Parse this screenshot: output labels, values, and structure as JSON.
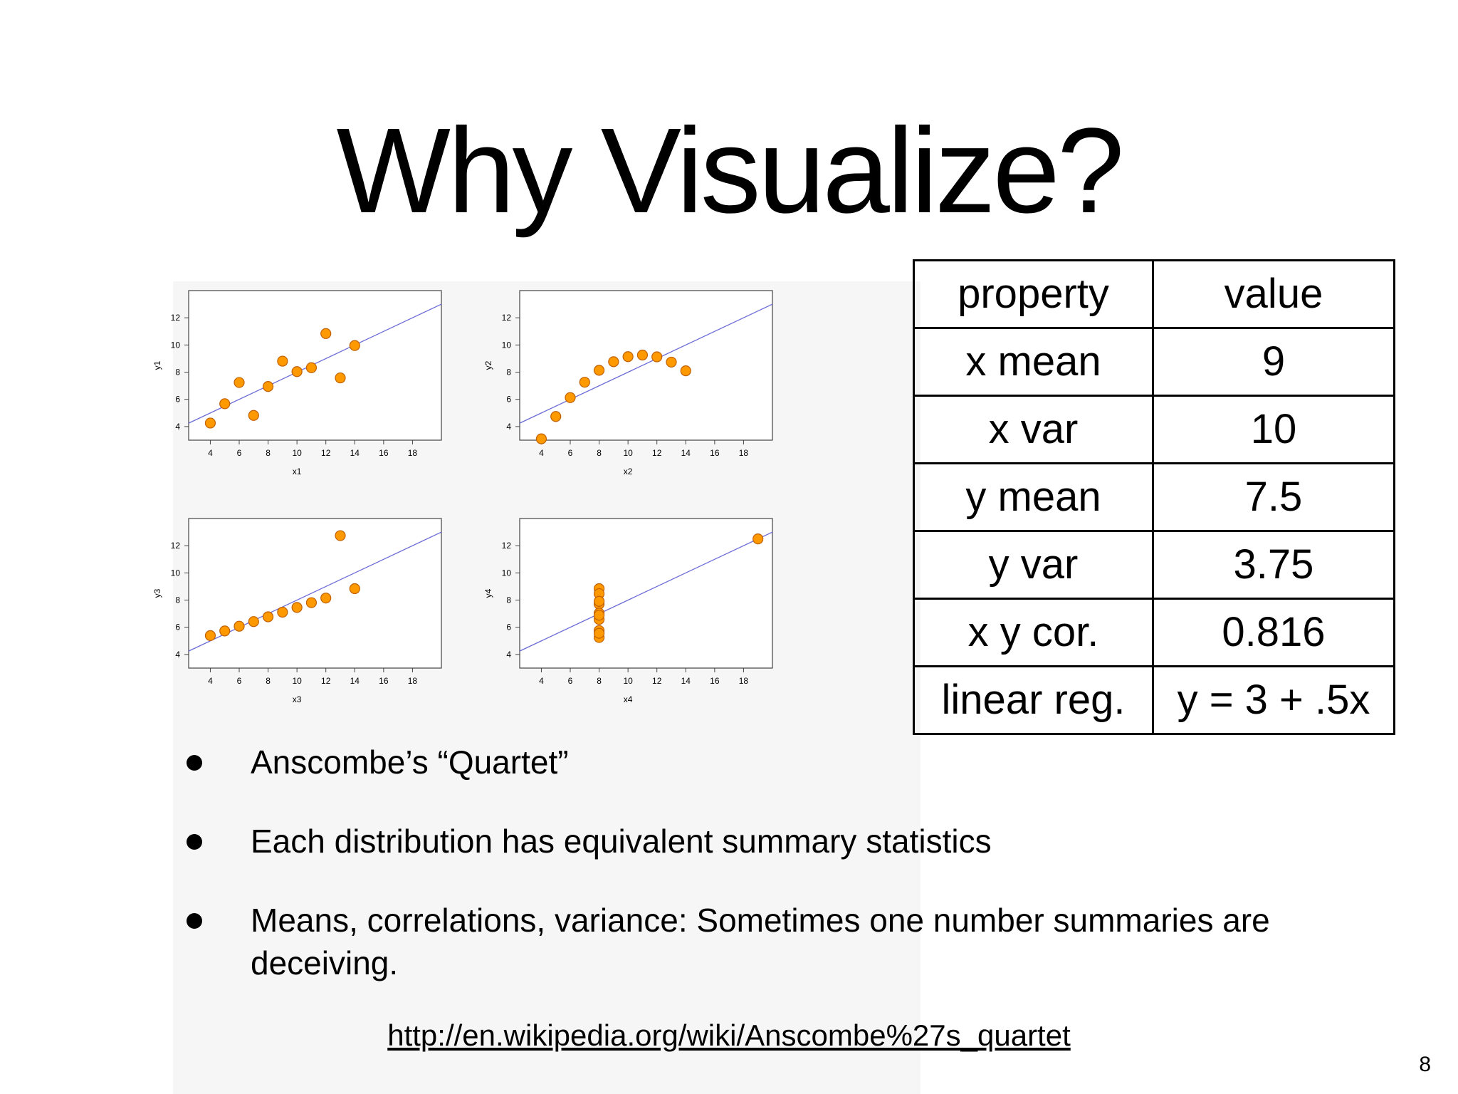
{
  "slide": {
    "title": "Why Visualize?",
    "page_number": "8",
    "link": "http://en.wikipedia.org/wiki/Anscombe%27s_quartet"
  },
  "bullets": [
    "Anscombe’s “Quartet”",
    "Each distribution has equivalent summary statistics",
    "Means, correlations, variance:  Sometimes one number summaries are deceiving."
  ],
  "stats_table": {
    "headers": [
      "property",
      "value"
    ],
    "rows": [
      [
        "x mean",
        "9"
      ],
      [
        "x var",
        "10"
      ],
      [
        "y mean",
        "7.5"
      ],
      [
        "y var",
        "3.75"
      ],
      [
        "x y cor.",
        "0.816"
      ],
      [
        "linear reg.",
        "y = 3 + .5x"
      ]
    ]
  },
  "colors": {
    "point_fill": "#ff9900",
    "point_stroke": "#c06000",
    "regression_line": "#6a6ad8"
  },
  "chart_data": [
    {
      "type": "scatter",
      "xlabel": "x1",
      "ylabel": "y1",
      "xlim": [
        2.5,
        20
      ],
      "ylim": [
        3,
        14
      ],
      "xticks": [
        4,
        6,
        8,
        10,
        12,
        14,
        16,
        18
      ],
      "yticks": [
        4,
        6,
        8,
        10,
        12
      ],
      "regression": {
        "intercept": 3,
        "slope": 0.5
      },
      "points": [
        [
          10,
          8.04
        ],
        [
          8,
          6.95
        ],
        [
          13,
          7.58
        ],
        [
          9,
          8.81
        ],
        [
          11,
          8.33
        ],
        [
          14,
          9.96
        ],
        [
          6,
          7.24
        ],
        [
          4,
          4.26
        ],
        [
          12,
          10.84
        ],
        [
          7,
          4.82
        ],
        [
          5,
          5.68
        ]
      ]
    },
    {
      "type": "scatter",
      "xlabel": "x2",
      "ylabel": "y2",
      "xlim": [
        2.5,
        20
      ],
      "ylim": [
        3,
        14
      ],
      "xticks": [
        4,
        6,
        8,
        10,
        12,
        14,
        16,
        18
      ],
      "yticks": [
        4,
        6,
        8,
        10,
        12
      ],
      "regression": {
        "intercept": 3,
        "slope": 0.5
      },
      "points": [
        [
          10,
          9.14
        ],
        [
          8,
          8.14
        ],
        [
          13,
          8.74
        ],
        [
          9,
          8.77
        ],
        [
          11,
          9.26
        ],
        [
          14,
          8.1
        ],
        [
          6,
          6.13
        ],
        [
          4,
          3.1
        ],
        [
          12,
          9.13
        ],
        [
          7,
          7.26
        ],
        [
          5,
          4.74
        ]
      ]
    },
    {
      "type": "scatter",
      "xlabel": "x3",
      "ylabel": "y3",
      "xlim": [
        2.5,
        20
      ],
      "ylim": [
        3,
        14
      ],
      "xticks": [
        4,
        6,
        8,
        10,
        12,
        14,
        16,
        18
      ],
      "yticks": [
        4,
        6,
        8,
        10,
        12
      ],
      "regression": {
        "intercept": 3,
        "slope": 0.5
      },
      "points": [
        [
          10,
          7.46
        ],
        [
          8,
          6.77
        ],
        [
          13,
          12.74
        ],
        [
          9,
          7.11
        ],
        [
          11,
          7.81
        ],
        [
          14,
          8.84
        ],
        [
          6,
          6.08
        ],
        [
          4,
          5.39
        ],
        [
          12,
          8.15
        ],
        [
          7,
          6.42
        ],
        [
          5,
          5.73
        ]
      ]
    },
    {
      "type": "scatter",
      "xlabel": "x4",
      "ylabel": "y4",
      "xlim": [
        2.5,
        20
      ],
      "ylim": [
        3,
        14
      ],
      "xticks": [
        4,
        6,
        8,
        10,
        12,
        14,
        16,
        18
      ],
      "yticks": [
        4,
        6,
        8,
        10,
        12
      ],
      "regression": {
        "intercept": 3,
        "slope": 0.5
      },
      "points": [
        [
          8,
          6.58
        ],
        [
          8,
          5.76
        ],
        [
          8,
          7.71
        ],
        [
          8,
          8.84
        ],
        [
          8,
          8.47
        ],
        [
          8,
          7.04
        ],
        [
          8,
          5.25
        ],
        [
          19,
          12.5
        ],
        [
          8,
          5.56
        ],
        [
          8,
          7.91
        ],
        [
          8,
          6.89
        ]
      ]
    }
  ]
}
